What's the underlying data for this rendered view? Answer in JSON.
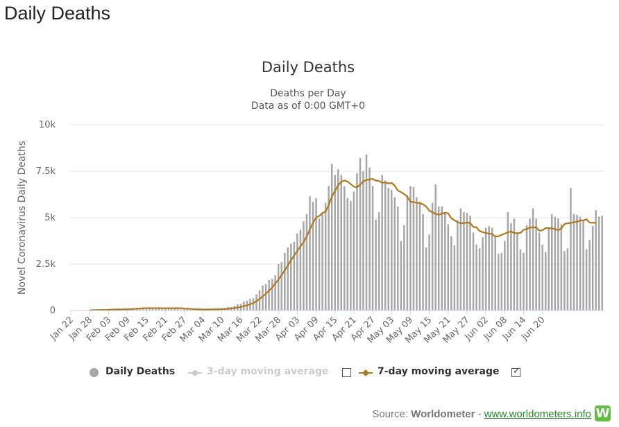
{
  "page": {
    "title": "Daily Deaths"
  },
  "chart_data": {
    "type": "bar",
    "title": "Daily Deaths",
    "subtitle_lines": [
      "Deaths per Day",
      "Data as of 0:00 GMT+0"
    ],
    "ylabel": "Novel Coronavirus Daily Deaths",
    "xlabel": "",
    "ylim": [
      0,
      10000
    ],
    "y_ticks": [
      0,
      2500,
      5000,
      7500,
      10000
    ],
    "y_tick_labels": [
      "0",
      "2.5k",
      "5k",
      "7.5k",
      "10k"
    ],
    "x_tick_labels": [
      "Jan 22",
      "Jan 28",
      "Feb 03",
      "Feb 09",
      "Feb 15",
      "Feb 21",
      "Feb 27",
      "Mar 04",
      "Mar 10",
      "Mar 16",
      "Mar 22",
      "Mar 28",
      "Apr 03",
      "Apr 09",
      "Apr 15",
      "Apr 21",
      "Apr 27",
      "May 03",
      "May 09",
      "May 15",
      "May 21",
      "May 27",
      "Jun 02",
      "Jun 08",
      "Jun 14",
      "Jun 20"
    ],
    "x_start": "2020-01-22",
    "grid": true,
    "legend_position": "bottom",
    "series": [
      {
        "name": "Daily Deaths",
        "type": "bar",
        "color": "#a6a6a6",
        "values": [
          17,
          0,
          8,
          16,
          14,
          26,
          26,
          38,
          42,
          46,
          45,
          57,
          64,
          65,
          73,
          73,
          86,
          89,
          97,
          108,
          97,
          146,
          121,
          143,
          142,
          105,
          98,
          136,
          114,
          119,
          147,
          152,
          158,
          101,
          147,
          62,
          54,
          66,
          42,
          59,
          48,
          66,
          77,
          61,
          68,
          73,
          79,
          106,
          100,
          137,
          200,
          183,
          248,
          337,
          364,
          485,
          529,
          634,
          666,
          873,
          1089,
          1343,
          1420,
          1640,
          1700,
          1900,
          2500,
          2600,
          3100,
          3400,
          3600,
          3700,
          4150,
          4350,
          4800,
          5200,
          6150,
          5850,
          6050,
          4950,
          5200,
          5800,
          6700,
          7900,
          7300,
          7600,
          7300,
          6700,
          6050,
          5900,
          6400,
          7400,
          8200,
          7500,
          8400,
          7700,
          6700,
          4900,
          5300,
          7300,
          7000,
          6600,
          6500,
          6100,
          5600,
          3750,
          4600,
          6200,
          6700,
          6650,
          6100,
          5850,
          5200,
          3400,
          4100,
          5800,
          6800,
          5600,
          5600,
          5300,
          4650,
          4000,
          3500,
          4850,
          5500,
          5300,
          5250,
          5100,
          4200,
          3550,
          3350,
          3950,
          4450,
          4550,
          4450,
          4050,
          3050,
          3100,
          3750,
          5300,
          4700,
          4950,
          4200,
          3300,
          3100,
          4600,
          4950,
          5500,
          4950,
          4200,
          3550,
          3150,
          4450,
          5200,
          5050,
          4950,
          4650,
          3200,
          3350,
          6600,
          5200,
          5150,
          5050,
          4900,
          3300,
          3800,
          4550,
          5400,
          5050,
          5100
        ]
      },
      {
        "name": "3-day moving average",
        "type": "line",
        "color": "#cccccc",
        "visible": false
      },
      {
        "name": "7-day moving average",
        "type": "line",
        "color": "#b07818",
        "visible": true,
        "values": [
          null,
          null,
          null,
          null,
          null,
          null,
          15.3,
          19.7,
          25.7,
          29.3,
          33.3,
          35.4,
          42.1,
          49.3,
          56.1,
          60.4,
          62.6,
          65.2,
          70.3,
          77.2,
          85.4,
          96.6,
          109,
          120.1,
          128.9,
          133.1,
          129.1,
          128.1,
          130.7,
          128.1,
          124.3,
          125.6,
          125.3,
          125,
          127.1,
          125.4,
          103.7,
          97.7,
          90.4,
          76.7,
          68.1,
          64.9,
          58.6,
          62,
          59,
          62.9,
          66.4,
          68.4,
          77.4,
          84.1,
          96.4,
          114,
          135.3,
          161,
          192.6,
          235.3,
          281,
          331.4,
          410.6,
          501,
          624.3,
          761,
          901.4,
          1065,
          1230,
          1459,
          1657.7,
          1908.6,
          2152.9,
          2425.7,
          2700,
          2954.3,
          3207.1,
          3453.6,
          3678.6,
          3985.7,
          4371.4,
          4721.4,
          5000,
          5092.9,
          5250,
          5328.6,
          5678.6,
          6128.6,
          6435.7,
          6742.9,
          6935.7,
          7000,
          6942.9,
          6807.1,
          6671.4,
          6635.7,
          6771.4,
          6957.1,
          7028.6,
          7057.1,
          7085.7,
          6996.4,
          6975,
          6875,
          6900,
          6842.9,
          6867.9,
          6725,
          6457.1,
          6378.6,
          6271.4,
          6128.6,
          5860.7,
          5837.1,
          5800,
          5785.7,
          5714.3,
          5600,
          5378.6,
          5292.9,
          5200,
          5157.1,
          5214.3,
          5271.4,
          5228.6,
          4964.3,
          4864.3,
          4757.1,
          4700,
          4714.3,
          4742.9,
          4714.3,
          4500,
          4483.3,
          4285.7,
          4214.3,
          4178.6,
          4142.9,
          4114.3,
          3985.7,
          4000,
          4071.4,
          4142.9,
          4208.3,
          4258.3,
          4175,
          4164.3,
          4175,
          4342.9,
          4385.7,
          4464.3,
          4483.3,
          4471.4,
          4300,
          4321.4,
          4436.4,
          4435.7,
          4421.4,
          4385.7,
          4321.4,
          4417.9,
          4650,
          4700,
          4714.3,
          4757.1,
          4778.6,
          4842.9,
          4850,
          4914.3,
          4735.7,
          4728.6,
          4721.4
        ]
      }
    ]
  },
  "legend": {
    "items": [
      {
        "label": "Daily Deaths",
        "color": "#a6a6a6",
        "active": true
      },
      {
        "label": "3-day moving average",
        "color": "#cccccc",
        "active": false,
        "checked": false
      },
      {
        "label": "7-day moving average",
        "color": "#b07818",
        "active": true,
        "checked": true
      }
    ],
    "checkmark_glyph": "✓"
  },
  "source": {
    "prefix": "Source:",
    "brand": "Worldometer",
    "separator": "-",
    "link_text": "www.worldometers.info",
    "logo_letter": "W",
    "logo_color": "#5fbf3f"
  }
}
